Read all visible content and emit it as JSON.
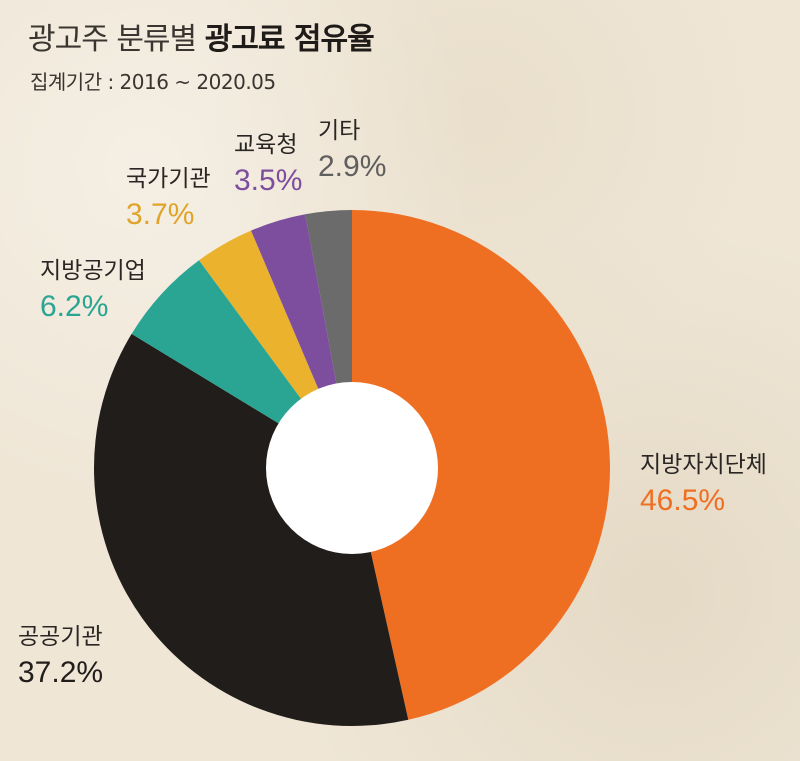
{
  "header": {
    "title_prefix": "광고주 분류별",
    "title_bold": "광고료 점유율",
    "subtitle": "집계기간 : 2016 ~ 2020.05"
  },
  "chart_data": {
    "type": "pie",
    "donut": true,
    "title": "광고주 분류별 광고료 점유율",
    "subtitle": "집계기간 : 2016 ~ 2020.05",
    "unit": "%",
    "slices": [
      {
        "label": "지방자치단체",
        "value": 46.5,
        "value_label": "46.5%",
        "color": "#ef6f22",
        "label_color": "#ef6f22"
      },
      {
        "label": "공공기관",
        "value": 37.2,
        "value_label": "37.2%",
        "color": "#211d1b",
        "label_color": "#211d1b"
      },
      {
        "label": "지방공기업",
        "value": 6.2,
        "value_label": "6.2%",
        "color": "#2ba593",
        "label_color": "#2ba593"
      },
      {
        "label": "국가기관",
        "value": 3.7,
        "value_label": "3.7%",
        "color": "#eab22d",
        "label_color": "#e0a429"
      },
      {
        "label": "교육청",
        "value": 3.5,
        "value_label": "3.5%",
        "color": "#7e4e9e",
        "label_color": "#7e4e9e"
      },
      {
        "label": "기타",
        "value": 2.9,
        "value_label": "2.9%",
        "color": "#6b6b6b",
        "label_color": "#5f5f5f"
      }
    ]
  }
}
